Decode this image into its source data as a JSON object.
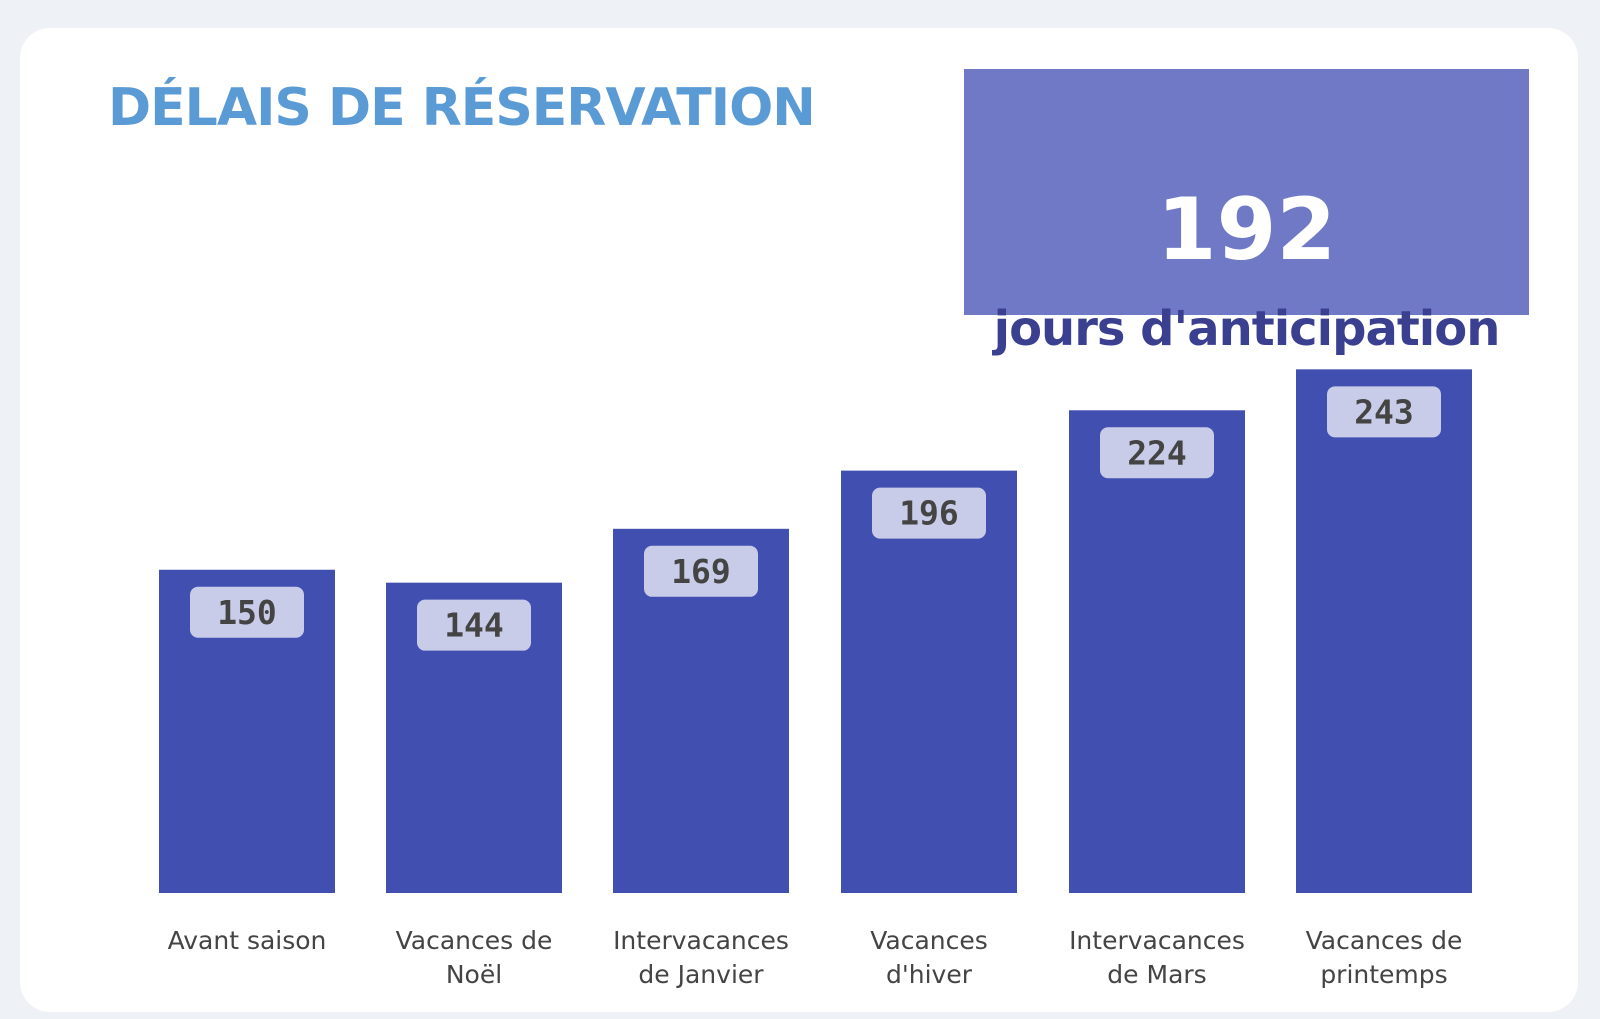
{
  "title": "DÉLAIS DE RÉSERVATION",
  "kpi": {
    "value": "192",
    "label": "jours d'anticipation"
  },
  "colors": {
    "title": "#5b9bd5",
    "kpi_background": "#7079c6",
    "kpi_label": "#3a3f8f",
    "bar": "#404fb0",
    "data_label_background": "#c9cce8"
  },
  "chart_data": {
    "type": "bar",
    "title": "DÉLAIS DE RÉSERVATION",
    "categories": [
      [
        "Avant saison"
      ],
      [
        "Vacances de",
        "Noël"
      ],
      [
        "Intervacances",
        "de Janvier"
      ],
      [
        "Vacances",
        "d'hiver"
      ],
      [
        "Intervacances",
        "de Mars"
      ],
      [
        "Vacances de",
        "printemps"
      ]
    ],
    "values": [
      150,
      144,
      169,
      196,
      224,
      243
    ],
    "xlabel": "",
    "ylabel": "",
    "grid": false,
    "legend": "none"
  }
}
